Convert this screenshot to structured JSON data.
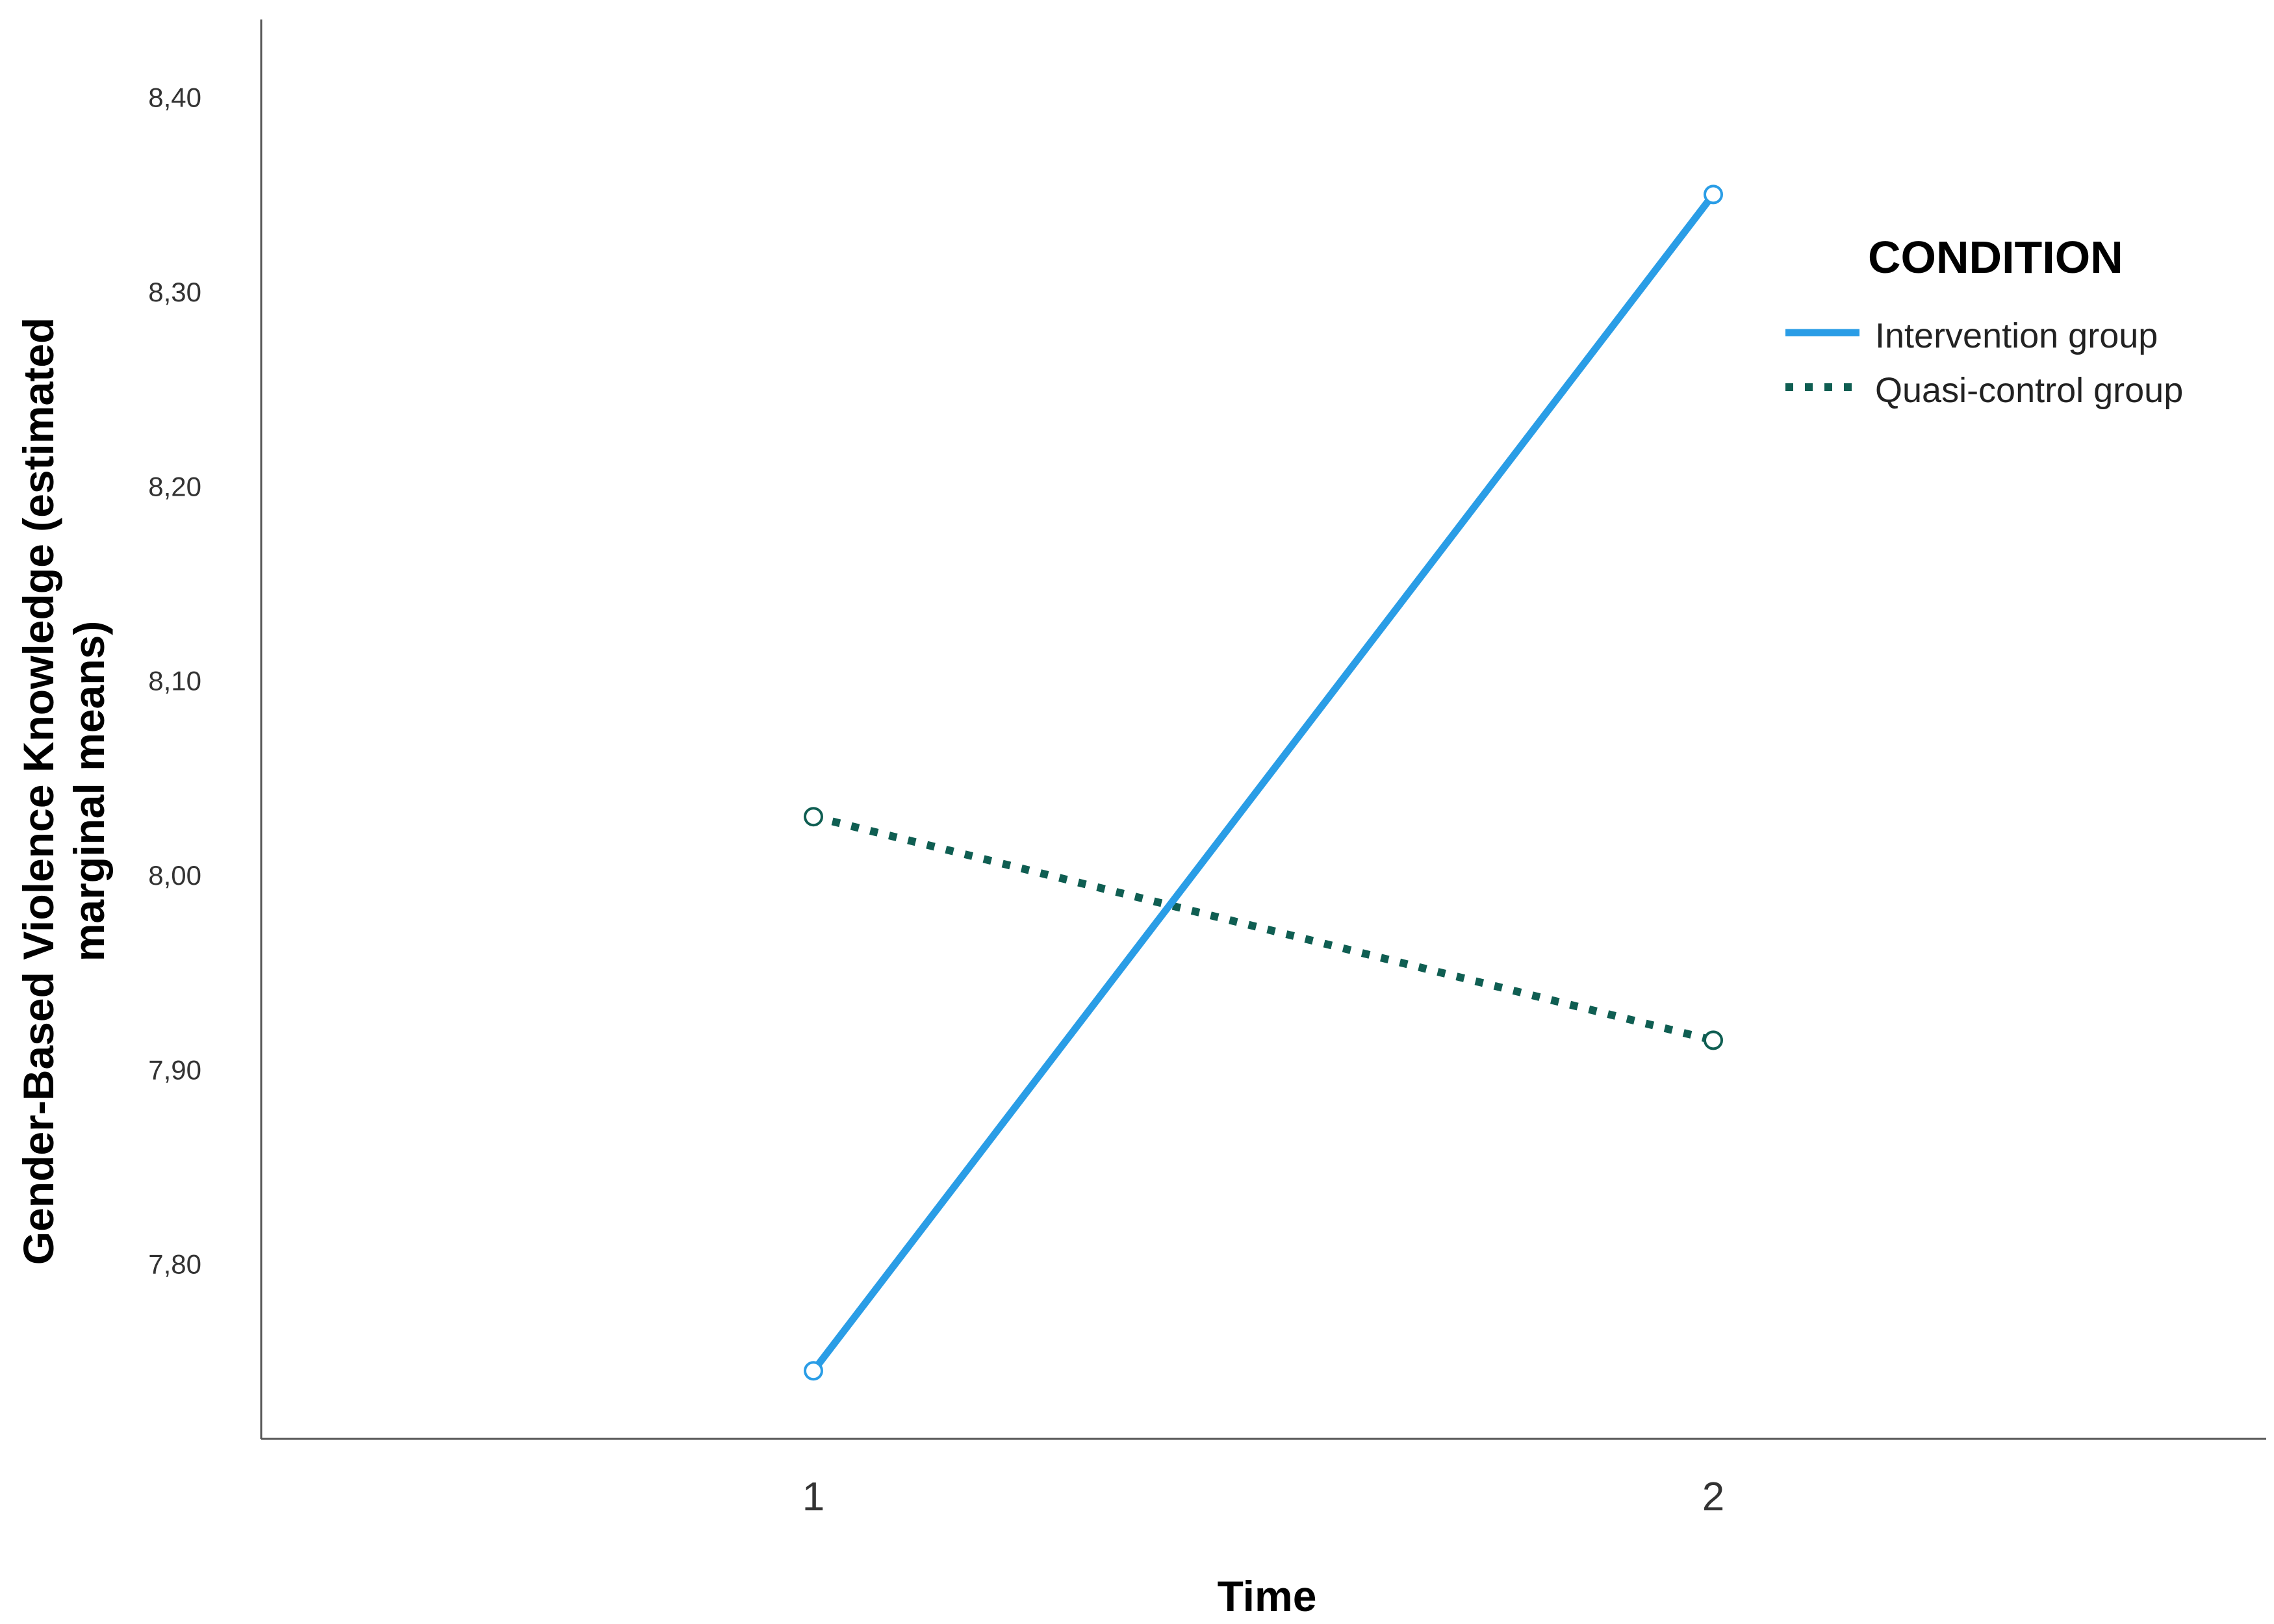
{
  "chart_data": {
    "type": "line",
    "x": [
      "1",
      "2"
    ],
    "xlabel": "Time",
    "ylabel_line1": "Gender-Based Violence Knowledge (estimated",
    "ylabel_line2": "marginal means)",
    "ylim": [
      7.71,
      8.44
    ],
    "yticks": [
      7.8,
      7.9,
      8.0,
      8.1,
      8.2,
      8.3,
      8.4
    ],
    "ytick_labels": [
      "7,80",
      "7,90",
      "8,00",
      "8,10",
      "8,20",
      "8,30",
      "8,40"
    ],
    "grid": false,
    "legend": {
      "title": "CONDITION",
      "position": "right"
    },
    "series": [
      {
        "name": "Intervention group",
        "values": [
          7.745,
          8.35
        ],
        "color": "#2a9de6",
        "style": "solid"
      },
      {
        "name": "Quasi-control group",
        "values": [
          8.03,
          7.915
        ],
        "color": "#0f5e52",
        "style": "dotted"
      }
    ]
  }
}
